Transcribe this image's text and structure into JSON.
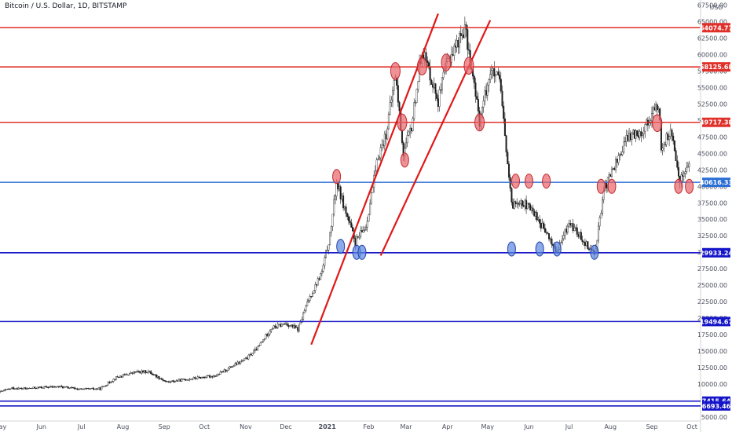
{
  "header": {
    "title": "Bitcoin / U.S. Dollar, 1D, BITSTAMP"
  },
  "colors": {
    "resistance": "#e0302a",
    "support_light": "#2b6fd6",
    "support_dark": "#1414c8",
    "channel": "#e01818",
    "candle": "#1c1c1c",
    "circle_red": "#e8646a",
    "circle_blue": "#5b86e0"
  },
  "chart_data": {
    "type": "candlestick",
    "title": "Bitcoin / U.S. Dollar, 1D, BITSTAMP",
    "price_axis_unit": "USD",
    "price_ticks": [
      "67500.00",
      "65000.00",
      "62500.00",
      "60000.00",
      "57500.00",
      "55000.00",
      "52500.00",
      "50000.00",
      "47500.00",
      "45000.00",
      "42500.00",
      "40000.00",
      "37500.00",
      "35000.00",
      "32500.00",
      "30000.00",
      "27500.00",
      "25000.00",
      "22500.00",
      "20000.00",
      "17500.00",
      "15000.00",
      "12500.00",
      "10000.00",
      "7500.00",
      "5000.00"
    ],
    "time_ticks": [
      "May",
      "Jun",
      "Jul",
      "Aug",
      "Sep",
      "Oct",
      "Nov",
      "Dec",
      "2021",
      "Feb",
      "Mar",
      "Apr",
      "May",
      "Jun",
      "Jul",
      "Aug",
      "Sep",
      "Oct"
    ],
    "date_range": [
      "2020-05-01",
      "2021-10-01"
    ],
    "ylim": [
      5000,
      67800
    ],
    "horizontal_levels": [
      {
        "label": "64074.77",
        "value": 64074.77,
        "kind": "resistance"
      },
      {
        "label": "58125.68",
        "value": 58125.68,
        "kind": "resistance"
      },
      {
        "label": "49717.38",
        "value": 49717.38,
        "kind": "resistance"
      },
      {
        "label": "40616.33",
        "value": 40616.33,
        "kind": "support_light"
      },
      {
        "label": "29933.24",
        "value": 29933.24,
        "kind": "support_dark"
      },
      {
        "label": "19494.67",
        "value": 19494.67,
        "kind": "support_dark"
      },
      {
        "label": "7415.64",
        "value": 7415.64,
        "kind": "support_dark"
      },
      {
        "label": "6693.46",
        "value": 6693.46,
        "kind": "support_dark"
      }
    ],
    "channel_lines": [
      {
        "from": [
          "2020-12-20",
          16000
        ],
        "to": [
          "2021-03-25",
          66200
        ]
      },
      {
        "from": [
          "2021-02-10",
          29500
        ],
        "to": [
          "2021-05-03",
          65200
        ]
      }
    ],
    "price_series": [
      [
        "2020-05-01",
        8800
      ],
      [
        "2020-05-10",
        9400
      ],
      [
        "2020-05-20",
        9300
      ],
      [
        "2020-06-01",
        9500
      ],
      [
        "2020-06-15",
        9600
      ],
      [
        "2020-07-01",
        9200
      ],
      [
        "2020-07-15",
        9300
      ],
      [
        "2020-07-27",
        11000
      ],
      [
        "2020-08-10",
        11800
      ],
      [
        "2020-08-20",
        11900
      ],
      [
        "2020-09-03",
        10300
      ],
      [
        "2020-09-20",
        10800
      ],
      [
        "2020-10-10",
        11300
      ],
      [
        "2020-10-20",
        12500
      ],
      [
        "2020-11-01",
        13800
      ],
      [
        "2020-11-10",
        15500
      ],
      [
        "2020-11-20",
        18500
      ],
      [
        "2020-12-01",
        19200
      ],
      [
        "2020-12-10",
        18300
      ],
      [
        "2020-12-18",
        22800
      ],
      [
        "2020-12-28",
        27000
      ],
      [
        "2021-01-03",
        32500
      ],
      [
        "2021-01-08",
        40616
      ],
      [
        "2021-01-15",
        36000
      ],
      [
        "2021-01-22",
        31500
      ],
      [
        "2021-01-30",
        34000
      ],
      [
        "2021-02-08",
        44500
      ],
      [
        "2021-02-14",
        48000
      ],
      [
        "2021-02-21",
        57000
      ],
      [
        "2021-02-27",
        45000
      ],
      [
        "2021-03-05",
        49000
      ],
      [
        "2021-03-13",
        61000
      ],
      [
        "2021-03-25",
        53000
      ],
      [
        "2021-04-01",
        59000
      ],
      [
        "2021-04-14",
        64000
      ],
      [
        "2021-04-25",
        50000
      ],
      [
        "2021-05-03",
        57500
      ],
      [
        "2021-05-10",
        56000
      ],
      [
        "2021-05-19",
        37000
      ],
      [
        "2021-05-25",
        38000
      ],
      [
        "2021-06-05",
        36000
      ],
      [
        "2021-06-22",
        30000
      ],
      [
        "2021-07-01",
        34500
      ],
      [
        "2021-07-20",
        29800
      ],
      [
        "2021-07-28",
        40000
      ],
      [
        "2021-08-14",
        47500
      ],
      [
        "2021-08-25",
        48500
      ],
      [
        "2021-09-06",
        52500
      ],
      [
        "2021-09-08",
        46000
      ],
      [
        "2021-09-15",
        48200
      ],
      [
        "2021-09-22",
        41000
      ],
      [
        "2021-09-29",
        43500
      ]
    ],
    "annotation_circles": [
      {
        "date": "2021-01-08",
        "value": 41500,
        "color": "red"
      },
      {
        "date": "2021-01-11",
        "value": 30900,
        "color": "blue"
      },
      {
        "date": "2021-01-23",
        "value": 30000,
        "color": "blue"
      },
      {
        "date": "2021-01-27",
        "value": 30000,
        "color": "blue"
      },
      {
        "date": "2021-02-21",
        "value": 57500,
        "color": "red"
      },
      {
        "date": "2021-02-26",
        "value": 49700,
        "color": "red"
      },
      {
        "date": "2021-02-28",
        "value": 44000,
        "color": "red"
      },
      {
        "date": "2021-03-13",
        "value": 58200,
        "color": "red"
      },
      {
        "date": "2021-03-31",
        "value": 58800,
        "color": "red"
      },
      {
        "date": "2021-04-17",
        "value": 58300,
        "color": "red"
      },
      {
        "date": "2021-04-25",
        "value": 49700,
        "color": "red"
      },
      {
        "date": "2021-05-19",
        "value": 30500,
        "color": "blue"
      },
      {
        "date": "2021-05-22",
        "value": 40800,
        "color": "red"
      },
      {
        "date": "2021-06-01",
        "value": 40800,
        "color": "red"
      },
      {
        "date": "2021-06-09",
        "value": 30500,
        "color": "blue"
      },
      {
        "date": "2021-06-14",
        "value": 40800,
        "color": "red"
      },
      {
        "date": "2021-06-22",
        "value": 30500,
        "color": "blue"
      },
      {
        "date": "2021-07-20",
        "value": 30000,
        "color": "blue"
      },
      {
        "date": "2021-07-25",
        "value": 40000,
        "color": "red"
      },
      {
        "date": "2021-08-02",
        "value": 40000,
        "color": "red"
      },
      {
        "date": "2021-09-05",
        "value": 49600,
        "color": "red"
      },
      {
        "date": "2021-09-21",
        "value": 40000,
        "color": "red"
      },
      {
        "date": "2021-09-29",
        "value": 40000,
        "color": "red"
      }
    ]
  }
}
